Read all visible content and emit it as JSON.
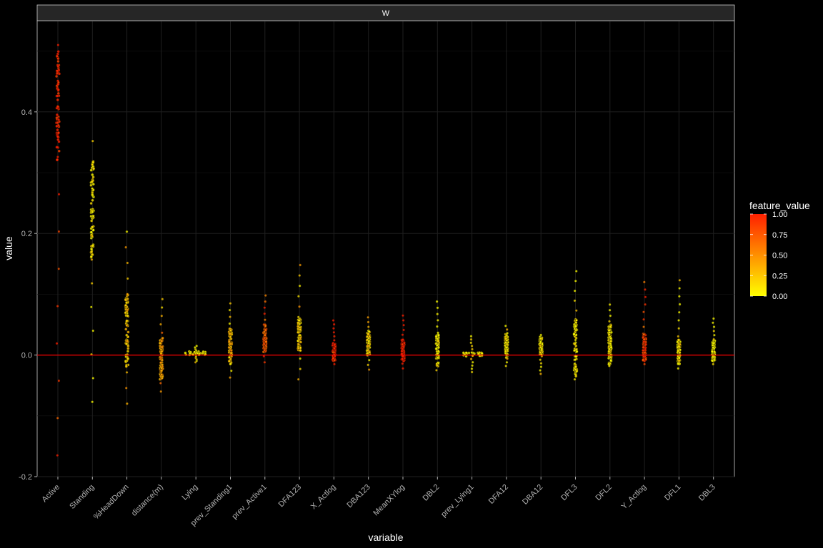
{
  "chart_data": {
    "type": "scatter",
    "facet_label": "W",
    "xlabel": "variable",
    "ylabel": "value",
    "ylim": [
      -0.2,
      0.55
    ],
    "y_ticks": [
      -0.2,
      0.0,
      0.2,
      0.4
    ],
    "y_tick_labels": [
      "-0.2",
      "0.0",
      "0.2",
      "0.4"
    ],
    "reference_line": {
      "y": 0,
      "color": "#ff0000"
    },
    "categories": [
      "Active",
      "Standing",
      "%HeadDown",
      "distance(m)",
      "Lying",
      "prev_Standing1",
      "prev_Active1",
      "DFA123",
      "X_Actlog",
      "DBA123",
      "MeanXYlog",
      "DBL2",
      "prev_Lying1",
      "DFA12",
      "DBA12",
      "DFL3",
      "DFL2",
      "Y_Actlog",
      "DFL1",
      "DBL3"
    ],
    "point_summary": [
      {
        "variable": "Active",
        "min": -0.165,
        "max": 0.51,
        "core_min": 0.32,
        "core_max": 0.5,
        "core_color": 0.95
      },
      {
        "variable": "Standing",
        "min": -0.077,
        "max": 0.352,
        "core_min": 0.16,
        "core_max": 0.32,
        "core_color": 0.05
      },
      {
        "variable": "%HeadDown",
        "min": -0.08,
        "max": 0.203,
        "core_min": -0.02,
        "core_max": 0.1,
        "core_color": 0.2
      },
      {
        "variable": "distance(m)",
        "min": -0.06,
        "max": 0.092,
        "core_min": -0.04,
        "core_max": 0.03,
        "core_color": 0.4
      },
      {
        "variable": "Lying",
        "min": -0.012,
        "max": 0.015,
        "core_min": 0.0,
        "core_max": 0.006,
        "core_color": 0.0
      },
      {
        "variable": "prev_Standing1",
        "min": -0.037,
        "max": 0.085,
        "core_min": -0.015,
        "core_max": 0.045,
        "core_color": 0.3
      },
      {
        "variable": "prev_Active1",
        "min": -0.012,
        "max": 0.098,
        "core_min": 0.005,
        "core_max": 0.05,
        "core_color": 0.7
      },
      {
        "variable": "DFA123",
        "min": -0.04,
        "max": 0.148,
        "core_min": 0.005,
        "core_max": 0.06,
        "core_color": 0.2
      },
      {
        "variable": "X_Actlog",
        "min": -0.015,
        "max": 0.057,
        "core_min": -0.01,
        "core_max": 0.02,
        "core_color": 1.0
      },
      {
        "variable": "DBA123",
        "min": -0.024,
        "max": 0.062,
        "core_min": 0.0,
        "core_max": 0.04,
        "core_color": 0.15
      },
      {
        "variable": "MeanXYlog",
        "min": -0.022,
        "max": 0.065,
        "core_min": -0.01,
        "core_max": 0.025,
        "core_color": 1.0
      },
      {
        "variable": "DBL2",
        "min": -0.025,
        "max": 0.088,
        "core_min": -0.02,
        "core_max": 0.035,
        "core_color": 0.05
      },
      {
        "variable": "prev_Lying1",
        "min": -0.028,
        "max": 0.031,
        "core_min": -0.002,
        "core_max": 0.004,
        "core_color": 0.0
      },
      {
        "variable": "DFA12",
        "min": -0.018,
        "max": 0.048,
        "core_min": -0.005,
        "core_max": 0.035,
        "core_color": 0.1
      },
      {
        "variable": "DBA12",
        "min": -0.031,
        "max": 0.033,
        "core_min": 0.0,
        "core_max": 0.03,
        "core_color": 0.05
      },
      {
        "variable": "DFL3",
        "min": -0.04,
        "max": 0.138,
        "core_min": -0.035,
        "core_max": 0.06,
        "core_color": 0.05
      },
      {
        "variable": "DFL2",
        "min": -0.018,
        "max": 0.083,
        "core_min": -0.018,
        "core_max": 0.05,
        "core_color": 0.05
      },
      {
        "variable": "Y_Actlog",
        "min": -0.015,
        "max": 0.12,
        "core_min": -0.01,
        "core_max": 0.035,
        "core_color": 0.85
      },
      {
        "variable": "DFL1",
        "min": -0.022,
        "max": 0.123,
        "core_min": -0.015,
        "core_max": 0.025,
        "core_color": 0.05
      },
      {
        "variable": "DBL3",
        "min": -0.015,
        "max": 0.06,
        "core_min": -0.01,
        "core_max": 0.025,
        "core_color": 0.0
      }
    ],
    "legend": {
      "title": "feature_value",
      "placement": "right",
      "breaks": [
        "1.00",
        "0.75",
        "0.50",
        "0.25",
        "0.00"
      ],
      "low_color": "#ffff00",
      "high_color": "#ff2000"
    },
    "background": "#000000",
    "grid_color": "#1f1f1f",
    "grid": true
  }
}
